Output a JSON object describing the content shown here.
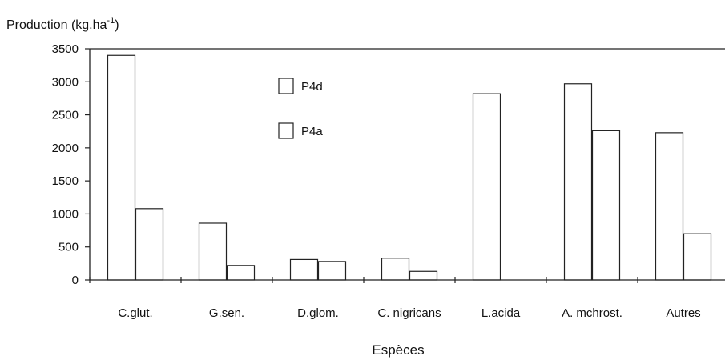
{
  "chart_data": {
    "type": "bar",
    "title": "",
    "ylabel_main": "Production (kg.ha",
    "ylabel_exp": "-1",
    "ylabel_close": ")",
    "xlabel": "Espèces",
    "categories": [
      "C.glut.",
      "G.sen.",
      "D.glom.",
      "C. nigricans",
      "L.acida",
      "A. mchrost.",
      "Autres"
    ],
    "series": [
      {
        "name": "P4d",
        "values": [
          3400,
          860,
          310,
          330,
          2820,
          2970,
          2230
        ]
      },
      {
        "name": "P4a",
        "values": [
          1080,
          220,
          280,
          130,
          0,
          2260,
          700
        ]
      }
    ],
    "ylim": [
      0,
      3500
    ],
    "yticks": [
      "0",
      "500",
      "1000",
      "1500",
      "2000",
      "2500",
      "3000",
      "3500"
    ],
    "grid": false,
    "legend_position": "top-center",
    "colors": {
      "bar_fill": "#ffffff",
      "bar_stroke": "#222222",
      "axis": "#222222"
    }
  }
}
